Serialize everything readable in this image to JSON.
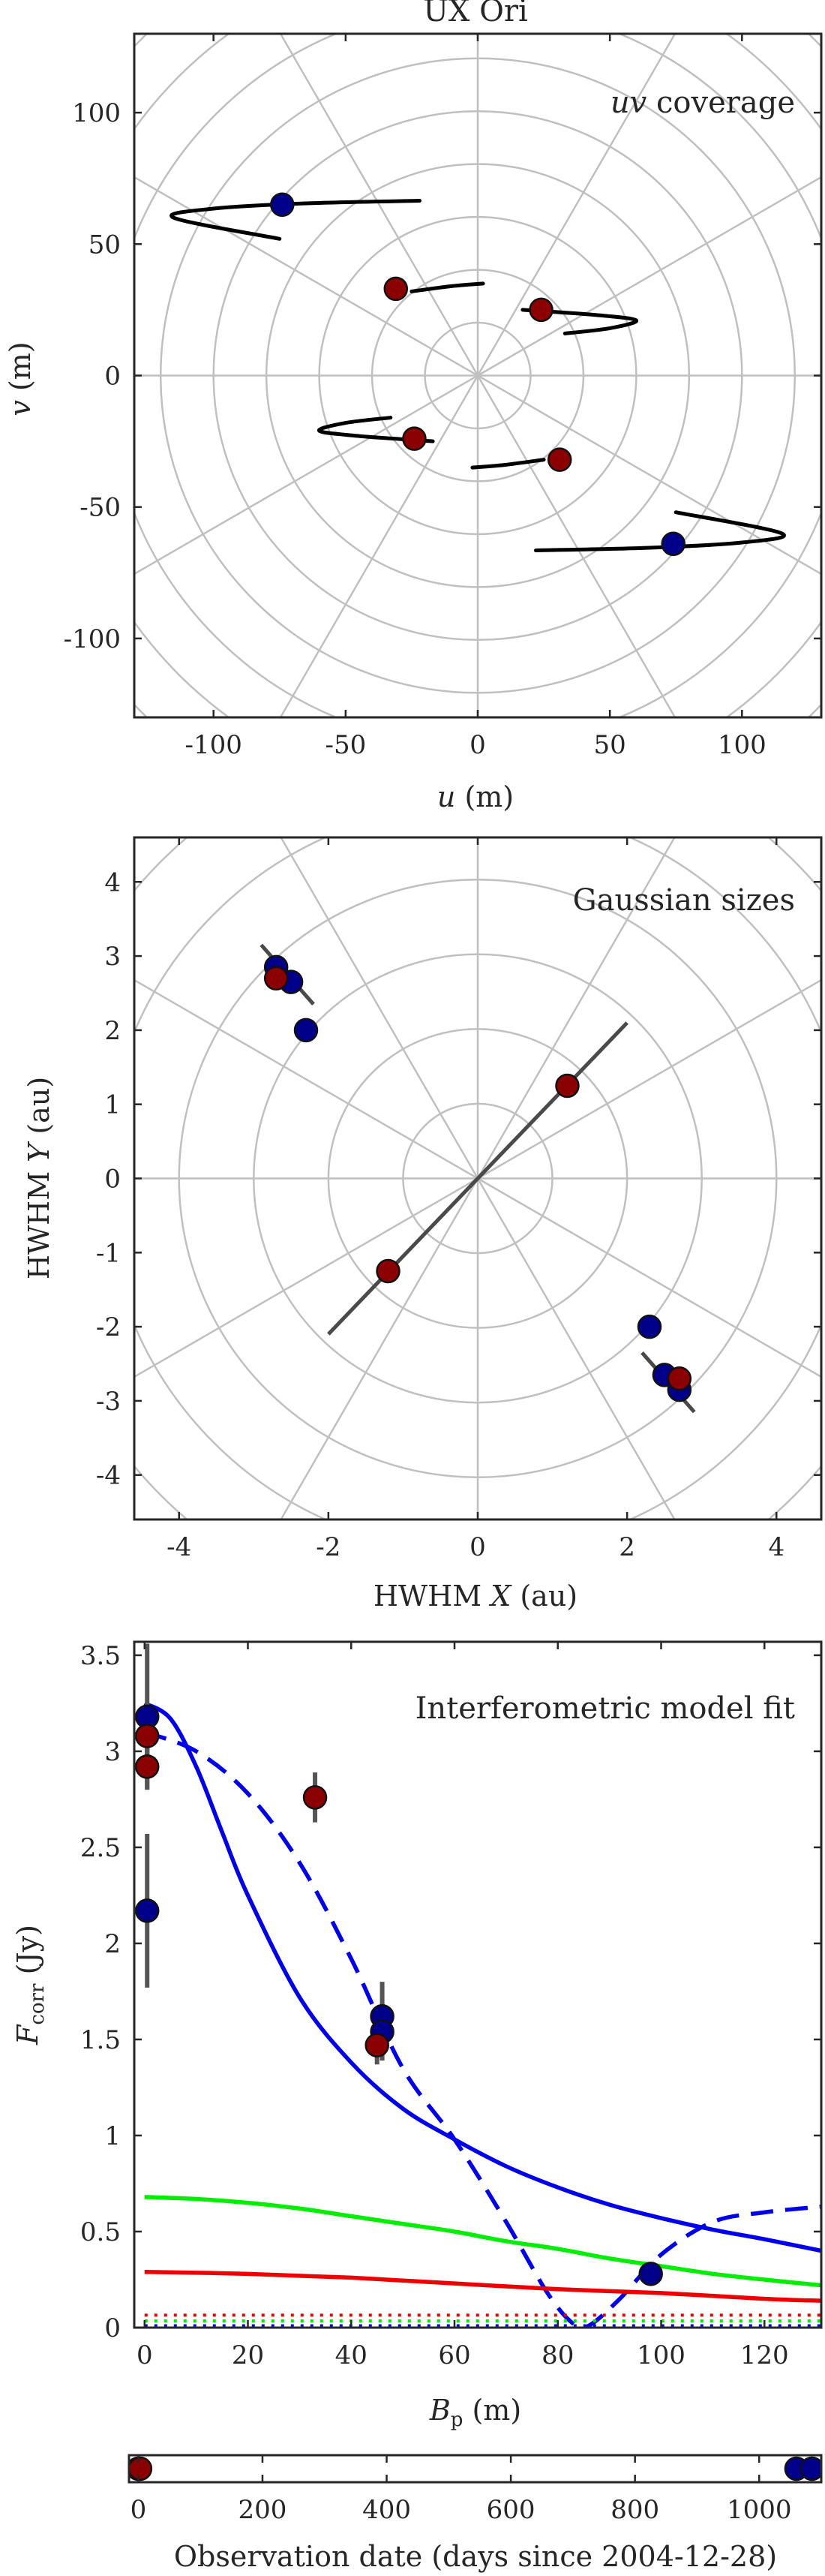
{
  "figure_title": "UX Ori",
  "colors": {
    "blue_marker": "#00008b",
    "red_marker": "#8b0000",
    "model_blue": "#0000ee",
    "model_green": "#00ee00",
    "model_red": "#ee0000",
    "track": "#000000",
    "axis_line": "#4a4a4a",
    "grid": "#c0c0c0",
    "errorbar": "#555555"
  },
  "chart_data": [
    {
      "type": "scatter",
      "id": "uv",
      "title": "uv coverage",
      "title_italic_part": "uv",
      "title_rest": " coverage",
      "xlabel_var": "u",
      "xlabel_unit": " (m)",
      "ylabel_var": "v",
      "ylabel_unit": " (m)",
      "xlim": [
        -130,
        130
      ],
      "ylim": [
        -130,
        130
      ],
      "xticks": [
        -100,
        -50,
        0,
        50,
        100
      ],
      "yticks": [
        -100,
        -50,
        0,
        50,
        100
      ],
      "polar_grid": true,
      "polar_radii": [
        20,
        40,
        60,
        80,
        100,
        120,
        140,
        160,
        180
      ],
      "polar_angle_step_deg": 30,
      "tracks": [
        [
          [
            -75,
            52
          ],
          [
            -115,
            60
          ],
          [
            -100,
            63.5
          ],
          [
            -65,
            65.5
          ],
          [
            -22,
            66.5
          ]
        ],
        [
          [
            75,
            -52
          ],
          [
            115,
            -60
          ],
          [
            100,
            -63.5
          ],
          [
            65,
            -65.5
          ],
          [
            22,
            -66.5
          ]
        ],
        [
          [
            -25,
            32
          ],
          [
            -10,
            34
          ],
          [
            2,
            35
          ]
        ],
        [
          [
            25,
            -32
          ],
          [
            10,
            -34
          ],
          [
            -2,
            -35
          ]
        ],
        [
          [
            17,
            25
          ],
          [
            45,
            23
          ],
          [
            60,
            21
          ],
          [
            50,
            18
          ],
          [
            33,
            16
          ]
        ],
        [
          [
            -17,
            -25
          ],
          [
            -45,
            -23
          ],
          [
            -60,
            -21
          ],
          [
            -50,
            -18
          ],
          [
            -33,
            -16
          ]
        ]
      ],
      "points": [
        {
          "x": -74,
          "y": 65,
          "color": "blue"
        },
        {
          "x": 74,
          "y": -64,
          "color": "blue"
        },
        {
          "x": -31,
          "y": 33,
          "color": "red"
        },
        {
          "x": 31,
          "y": -32,
          "color": "red"
        },
        {
          "x": 24,
          "y": 25,
          "color": "red"
        },
        {
          "x": -24,
          "y": -24,
          "color": "red"
        }
      ]
    },
    {
      "type": "scatter",
      "id": "sizes",
      "title": "Gaussian sizes",
      "xlabel_text": "HWHM ",
      "xlabel_var": "X",
      "xlabel_unit": " (au)",
      "ylabel_text": "HWHM ",
      "ylabel_var": "Y",
      "ylabel_unit": " (au)",
      "xlim": [
        -4.6,
        4.6
      ],
      "ylim": [
        -4.6,
        4.6
      ],
      "xticks": [
        -4,
        -2,
        0,
        2,
        4
      ],
      "yticks": [
        -4,
        -3,
        -2,
        -1,
        0,
        1,
        2,
        3,
        4
      ],
      "polar_grid": true,
      "polar_radii": [
        1,
        2,
        3,
        4,
        5,
        6,
        7
      ],
      "polar_angle_step_deg": 30,
      "lines": [
        [
          [
            -2.0,
            -2.1
          ],
          [
            2.0,
            2.1
          ]
        ],
        [
          [
            -2.9,
            3.15
          ],
          [
            -2.2,
            2.35
          ]
        ],
        [
          [
            2.2,
            -2.35
          ],
          [
            2.9,
            -3.15
          ]
        ]
      ],
      "points": [
        {
          "x": -2.7,
          "y": 2.85,
          "color": "blue"
        },
        {
          "x": -2.5,
          "y": 2.65,
          "color": "blue"
        },
        {
          "x": -2.3,
          "y": 2.0,
          "color": "blue"
        },
        {
          "x": -2.7,
          "y": 2.7,
          "color": "red"
        },
        {
          "x": 2.3,
          "y": -2.0,
          "color": "blue"
        },
        {
          "x": 2.5,
          "y": -2.65,
          "color": "blue"
        },
        {
          "x": 2.7,
          "y": -2.85,
          "color": "blue"
        },
        {
          "x": 2.7,
          "y": -2.7,
          "color": "red"
        },
        {
          "x": 1.2,
          "y": 1.25,
          "color": "red"
        },
        {
          "x": -1.2,
          "y": -1.25,
          "color": "red"
        }
      ]
    },
    {
      "type": "line",
      "id": "fit",
      "title": "Interferometric model fit",
      "xlabel_var": "B",
      "xlabel_sub": "p",
      "xlabel_unit": " (m)",
      "ylabel_var": "F",
      "ylabel_sub": "corr",
      "ylabel_unit": " (Jy)",
      "xlim": [
        -2,
        131
      ],
      "ylim": [
        0,
        3.57
      ],
      "xticks": [
        0,
        20,
        40,
        60,
        80,
        100,
        120
      ],
      "yticks": [
        0,
        0.5,
        1,
        1.5,
        2,
        2.5,
        3,
        3.5
      ],
      "series": [
        {
          "color": "blue",
          "dash": "solid",
          "points": [
            [
              0,
              3.25
            ],
            [
              5,
              3.17
            ],
            [
              10,
              2.92
            ],
            [
              15,
              2.58
            ],
            [
              20,
              2.25
            ],
            [
              30,
              1.72
            ],
            [
              40,
              1.38
            ],
            [
              50,
              1.14
            ],
            [
              60,
              0.98
            ],
            [
              70,
              0.84
            ],
            [
              80,
              0.73
            ],
            [
              90,
              0.64
            ],
            [
              100,
              0.57
            ],
            [
              110,
              0.51
            ],
            [
              120,
              0.46
            ],
            [
              131,
              0.4
            ]
          ]
        },
        {
          "color": "blue",
          "dash": "dashed",
          "points": [
            [
              0,
              3.1
            ],
            [
              10,
              3.0
            ],
            [
              20,
              2.78
            ],
            [
              30,
              2.42
            ],
            [
              40,
              1.92
            ],
            [
              50,
              1.35
            ],
            [
              60,
              0.98
            ],
            [
              70,
              0.55
            ],
            [
              78,
              0.18
            ],
            [
              83,
              0.02
            ],
            [
              86,
              0.01
            ],
            [
              92,
              0.15
            ],
            [
              100,
              0.38
            ],
            [
              110,
              0.55
            ],
            [
              120,
              0.6
            ],
            [
              131,
              0.63
            ]
          ]
        },
        {
          "color": "green",
          "dash": "solid",
          "points": [
            [
              0,
              0.68
            ],
            [
              10,
              0.67
            ],
            [
              20,
              0.65
            ],
            [
              30,
              0.62
            ],
            [
              40,
              0.58
            ],
            [
              50,
              0.54
            ],
            [
              60,
              0.5
            ],
            [
              70,
              0.45
            ],
            [
              80,
              0.41
            ],
            [
              90,
              0.36
            ],
            [
              100,
              0.32
            ],
            [
              110,
              0.28
            ],
            [
              120,
              0.25
            ],
            [
              131,
              0.22
            ]
          ]
        },
        {
          "color": "red",
          "dash": "solid",
          "points": [
            [
              0,
              0.29
            ],
            [
              20,
              0.28
            ],
            [
              40,
              0.26
            ],
            [
              60,
              0.23
            ],
            [
              80,
              0.2
            ],
            [
              100,
              0.18
            ],
            [
              120,
              0.15
            ],
            [
              131,
              0.14
            ]
          ]
        },
        {
          "color": "red",
          "dash": "dotted",
          "points": [
            [
              0,
              0.065
            ],
            [
              131,
              0.065
            ]
          ]
        },
        {
          "color": "green",
          "dash": "dotted",
          "points": [
            [
              0,
              0.035
            ],
            [
              131,
              0.035
            ]
          ]
        },
        {
          "color": "blue",
          "dash": "dotted",
          "points": [
            [
              0,
              0.01
            ],
            [
              131,
              0.01
            ]
          ]
        }
      ],
      "points": [
        {
          "x": 0.5,
          "y": 3.18,
          "color": "blue",
          "err": 0.38
        },
        {
          "x": 0.5,
          "y": 2.17,
          "color": "blue",
          "err": 0.4
        },
        {
          "x": 0.5,
          "y": 3.08,
          "color": "red",
          "err": 0.12
        },
        {
          "x": 0.5,
          "y": 2.92,
          "color": "red",
          "err": 0.12
        },
        {
          "x": 33,
          "y": 2.76,
          "color": "red",
          "err": 0.13
        },
        {
          "x": 46,
          "y": 1.62,
          "color": "blue",
          "err": 0.18
        },
        {
          "x": 46,
          "y": 1.54,
          "color": "blue",
          "err": 0.15
        },
        {
          "x": 45,
          "y": 1.47,
          "color": "red",
          "err": 0.1
        },
        {
          "x": 98,
          "y": 0.28,
          "color": "blue",
          "err": 0.03
        }
      ]
    },
    {
      "type": "scatter",
      "id": "dates",
      "xlabel": "Observation date (days since 2004-12-28)",
      "xlim": [
        -15,
        1100
      ],
      "xticks": [
        0,
        200,
        400,
        600,
        800,
        1000
      ],
      "points": [
        {
          "x": 0,
          "color": "blue"
        },
        {
          "x": 3,
          "color": "red"
        },
        {
          "x": 1060,
          "color": "blue"
        },
        {
          "x": 1085,
          "color": "blue"
        }
      ]
    }
  ]
}
